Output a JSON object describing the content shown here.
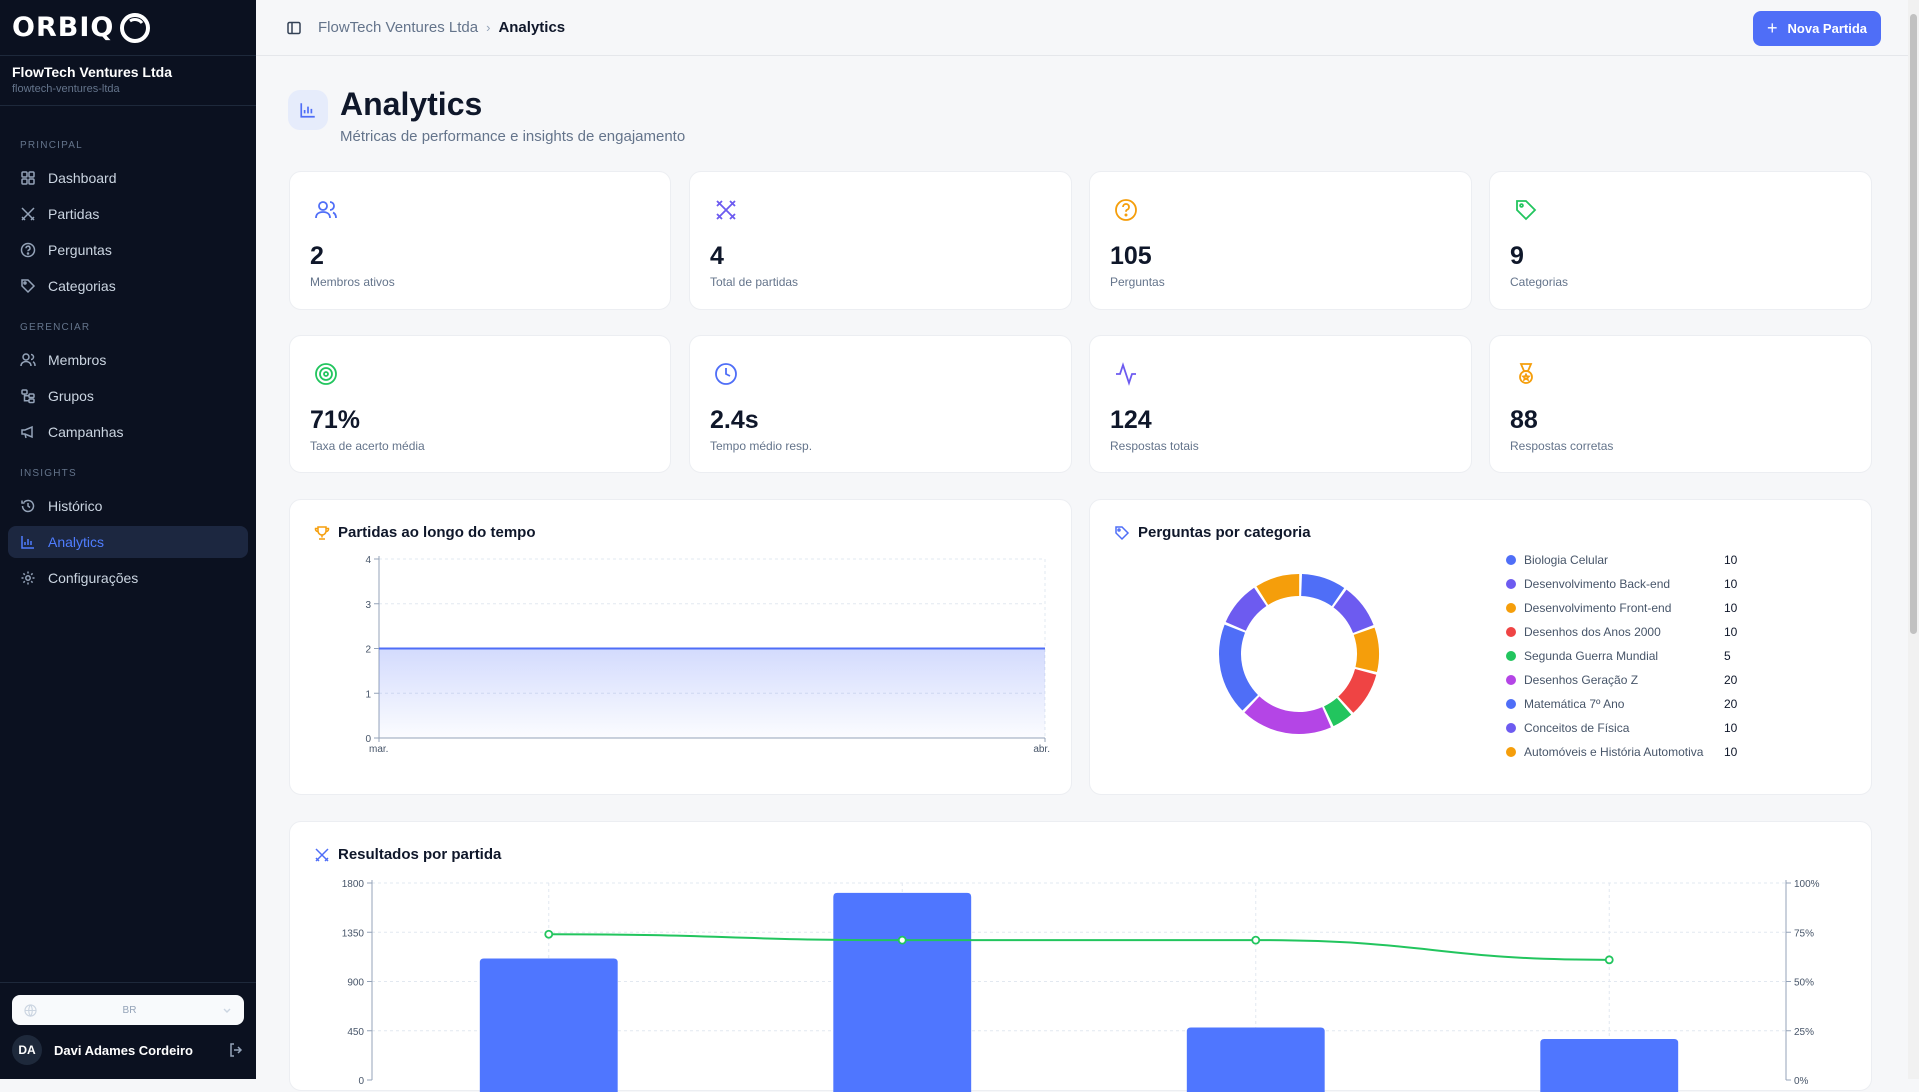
{
  "brand": {
    "name": "ORBIQ"
  },
  "org": {
    "name": "FlowTech Ventures Ltda",
    "slug": "flowtech-ventures-ltda"
  },
  "sidebar": {
    "sections": [
      {
        "label": "PRINCIPAL",
        "items": [
          {
            "label": "Dashboard",
            "icon": "grid-icon"
          },
          {
            "label": "Partidas",
            "icon": "swords-icon"
          },
          {
            "label": "Perguntas",
            "icon": "question-circle-icon"
          },
          {
            "label": "Categorias",
            "icon": "tag-icon"
          }
        ]
      },
      {
        "label": "GERENCIAR",
        "items": [
          {
            "label": "Membros",
            "icon": "users-icon"
          },
          {
            "label": "Grupos",
            "icon": "hierarchy-icon"
          },
          {
            "label": "Campanhas",
            "icon": "megaphone-icon"
          }
        ]
      },
      {
        "label": "INSIGHTS",
        "items": [
          {
            "label": "Histórico",
            "icon": "history-icon"
          },
          {
            "label": "Analytics",
            "icon": "bar-chart-icon",
            "active": true
          },
          {
            "label": "Configurações",
            "icon": "gear-icon"
          }
        ]
      }
    ],
    "language": "BR",
    "user": {
      "initials": "DA",
      "name": "Davi Adames Cordeiro"
    }
  },
  "header": {
    "breadcrumb_root": "FlowTech Ventures Ltda",
    "breadcrumb_current": "Analytics",
    "new_button": "Nova Partida"
  },
  "page": {
    "title": "Analytics",
    "subtitle": "Métricas de performance e insights de engajamento"
  },
  "stats": [
    {
      "value": "2",
      "label": "Membros ativos",
      "icon": "users-icon",
      "color": "#4f6ef7"
    },
    {
      "value": "4",
      "label": "Total de partidas",
      "icon": "swords-icon",
      "color": "#6d5bf0"
    },
    {
      "value": "105",
      "label": "Perguntas",
      "icon": "question-circle-icon",
      "color": "#f59e0b"
    },
    {
      "value": "9",
      "label": "Categorias",
      "icon": "tag-icon",
      "color": "#22c55e"
    },
    {
      "value": "71%",
      "label": "Taxa de acerto média",
      "icon": "target-icon",
      "color": "#22c55e"
    },
    {
      "value": "2.4s",
      "label": "Tempo médio resp.",
      "icon": "clock-icon",
      "color": "#4f6ef7"
    },
    {
      "value": "124",
      "label": "Respostas totais",
      "icon": "activity-icon",
      "color": "#6d5bf0"
    },
    {
      "value": "88",
      "label": "Respostas corretas",
      "icon": "medal-icon",
      "color": "#f59e0b"
    }
  ],
  "colors": {
    "accent": "#4f6ef7",
    "line_green": "#22c55e",
    "sidebar_bg": "#0b1120"
  },
  "chart_data": [
    {
      "type": "area",
      "title": "Partidas ao longo do tempo",
      "categories": [
        "mar.",
        "abr."
      ],
      "values": [
        2,
        2
      ],
      "ylim": [
        0,
        4
      ],
      "yticks": [
        0,
        1,
        2,
        3,
        4
      ],
      "grid": true
    },
    {
      "type": "pie",
      "title": "Perguntas por categoria",
      "donut": true,
      "legend_position": "right",
      "slices": [
        {
          "label": "Biologia Celular",
          "value": 10,
          "color": "#4f6ef7"
        },
        {
          "label": "Desenvolvimento Back-end",
          "value": 10,
          "color": "#6d5bf0"
        },
        {
          "label": "Desenvolvimento Front-end",
          "value": 10,
          "color": "#f59e0b"
        },
        {
          "label": "Desenhos dos Anos 2000",
          "value": 10,
          "color": "#ef4444"
        },
        {
          "label": "Segunda Guerra Mundial",
          "value": 5,
          "color": "#22c55e"
        },
        {
          "label": "Desenhos Geração Z",
          "value": 20,
          "color": "#b445e6"
        },
        {
          "label": "Matemática 7º Ano",
          "value": 20,
          "color": "#4f6ef7"
        },
        {
          "label": "Conceitos de Física",
          "value": 10,
          "color": "#6d5bf0"
        },
        {
          "label": "Automóveis e História Automotiva",
          "value": 10,
          "color": "#f59e0b"
        }
      ]
    },
    {
      "type": "bar",
      "title": "Resultados por partida",
      "bars": [
        1110,
        1710,
        480,
        375
      ],
      "line": [
        74,
        71,
        71,
        61
      ],
      "ylim": [
        0,
        1800
      ],
      "yticks": [
        0,
        450,
        900,
        1350,
        1800
      ],
      "ylim_right": [
        0,
        100
      ],
      "yticks_right": [
        "0%",
        "25%",
        "50%",
        "75%",
        "100%"
      ],
      "bar_color": "#4f76ff",
      "line_color": "#22c55e",
      "grid": true
    }
  ]
}
